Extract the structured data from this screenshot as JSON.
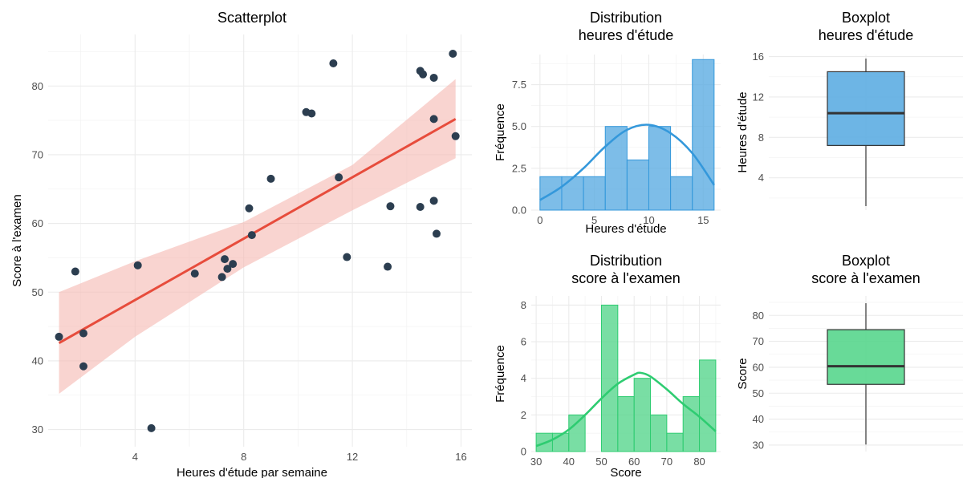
{
  "chart_data": [
    {
      "type": "scatter",
      "title": "Scatterplot",
      "xlabel": "Heures d'étude par semaine",
      "ylabel": "Score à l'examen",
      "xlim": [
        0.8,
        16.4
      ],
      "ylim": [
        27.5,
        87.5
      ],
      "xticks": [
        4,
        8,
        12,
        16
      ],
      "xticks_minor": [
        2,
        6,
        10,
        14
      ],
      "yticks": [
        30,
        40,
        50,
        60,
        70,
        80
      ],
      "yticks_minor": [
        35,
        45,
        55,
        65,
        75,
        85
      ],
      "point_color": "#2c3e50",
      "points": [
        {
          "x": 1.2,
          "y": 43.5
        },
        {
          "x": 1.8,
          "y": 53
        },
        {
          "x": 2.1,
          "y": 39.2
        },
        {
          "x": 2.1,
          "y": 44
        },
        {
          "x": 4.1,
          "y": 53.9
        },
        {
          "x": 4.6,
          "y": 30.2
        },
        {
          "x": 6.2,
          "y": 52.7
        },
        {
          "x": 7.2,
          "y": 52.2
        },
        {
          "x": 7.3,
          "y": 54.8
        },
        {
          "x": 7.4,
          "y": 53.4
        },
        {
          "x": 7.6,
          "y": 54.1
        },
        {
          "x": 8.2,
          "y": 62.2
        },
        {
          "x": 8.3,
          "y": 58.3
        },
        {
          "x": 9.0,
          "y": 66.5
        },
        {
          "x": 10.3,
          "y": 76.2
        },
        {
          "x": 10.5,
          "y": 76
        },
        {
          "x": 11.3,
          "y": 83.3
        },
        {
          "x": 11.5,
          "y": 66.7
        },
        {
          "x": 11.8,
          "y": 55.1
        },
        {
          "x": 13.3,
          "y": 53.7
        },
        {
          "x": 13.4,
          "y": 62.5
        },
        {
          "x": 14.5,
          "y": 82.2
        },
        {
          "x": 14.6,
          "y": 81.7
        },
        {
          "x": 14.5,
          "y": 62.4
        },
        {
          "x": 15.0,
          "y": 81.2
        },
        {
          "x": 15.0,
          "y": 75.2
        },
        {
          "x": 15.0,
          "y": 63.3
        },
        {
          "x": 15.1,
          "y": 58.5
        },
        {
          "x": 15.7,
          "y": 84.7
        },
        {
          "x": 15.8,
          "y": 72.7
        }
      ],
      "fit": {
        "x0": 1.2,
        "y0": 42.6,
        "x1": 15.8,
        "y1": 75.2,
        "color": "#e74c3c"
      },
      "band": {
        "color": "#f5b7b1",
        "x": [
          1.2,
          4,
          8,
          12,
          15.8
        ],
        "lower": [
          35.2,
          43.5,
          53.6,
          61.9,
          69.5
        ],
        "upper": [
          50.0,
          54.5,
          60.2,
          68.5,
          81.0
        ]
      }
    },
    {
      "type": "bar",
      "title": "Distribution\nheures d'étude",
      "xlabel": "Heures d'étude",
      "ylabel": "Fréquence",
      "xlim": [
        -0.8,
        16.6
      ],
      "ylim": [
        0,
        9.3
      ],
      "xticks": [
        0,
        5,
        10,
        15
      ],
      "xticks_minor": [
        2.5,
        7.5,
        12.5
      ],
      "yticks": [
        0.0,
        2.5,
        5.0,
        7.5
      ],
      "yticks_minor": [
        1.25,
        3.75,
        6.25,
        8.75
      ],
      "bin_edges": [
        0,
        2,
        4,
        6,
        8,
        10,
        12,
        14,
        16
      ],
      "counts": [
        2,
        2,
        2,
        5,
        3,
        5,
        2,
        9
      ],
      "fill": "#5dade2",
      "line": "#3498db",
      "density_curve": {
        "x": [
          0,
          2,
          4,
          6,
          8,
          10,
          12,
          14,
          16
        ],
        "y": [
          0.6,
          1.4,
          2.5,
          3.8,
          4.8,
          5.1,
          4.6,
          3.4,
          1.5
        ]
      }
    },
    {
      "type": "box",
      "title": "Boxplot\nheures d'étude",
      "ylabel": "Heures d'étude",
      "ylim": [
        0.8,
        16.2
      ],
      "yticks": [
        4,
        8,
        12,
        16
      ],
      "yticks_minor": [
        2,
        6,
        10,
        14
      ],
      "stats": {
        "min": 1.2,
        "q1": 7.2,
        "median": 10.4,
        "q3": 14.5,
        "max": 15.8
      },
      "fill": "#5dade2"
    },
    {
      "type": "bar",
      "title": "Distribution\nscore à l'examen",
      "xlabel": "Score",
      "ylabel": "Fréquence",
      "xlim": [
        28.5,
        86.5
      ],
      "ylim": [
        0,
        8.5
      ],
      "xticks": [
        30,
        40,
        50,
        60,
        70,
        80
      ],
      "xticks_minor": [
        35,
        45,
        55,
        65,
        75,
        85
      ],
      "yticks": [
        0,
        2,
        4,
        6,
        8
      ],
      "yticks_minor": [
        1,
        3,
        5,
        7
      ],
      "bin_edges": [
        30,
        35,
        40,
        45,
        50,
        55,
        60,
        65,
        70,
        75,
        80,
        85
      ],
      "counts": [
        1,
        1,
        2,
        0,
        8,
        3,
        4,
        2,
        1,
        3,
        5
      ],
      "fill": "#58d68d",
      "line": "#2ecc71",
      "density_curve": {
        "x": [
          30,
          35,
          40,
          45,
          50,
          55,
          60,
          62,
          65,
          70,
          75,
          80,
          85
        ],
        "y": [
          0.3,
          0.65,
          1.2,
          2.0,
          2.9,
          3.7,
          4.2,
          4.3,
          4.1,
          3.4,
          2.6,
          1.9,
          1.1
        ]
      }
    },
    {
      "type": "box",
      "title": "Boxplot\nscore à l'examen",
      "ylabel": "Score",
      "ylim": [
        27.5,
        87.5
      ],
      "yticks": [
        30,
        40,
        50,
        60,
        70,
        80
      ],
      "yticks_minor": [
        35,
        45,
        55,
        65,
        75,
        85
      ],
      "stats": {
        "min": 30.2,
        "q1": 53.4,
        "median": 60.4,
        "q3": 74.5,
        "max": 84.7
      },
      "fill": "#58d68d"
    }
  ]
}
